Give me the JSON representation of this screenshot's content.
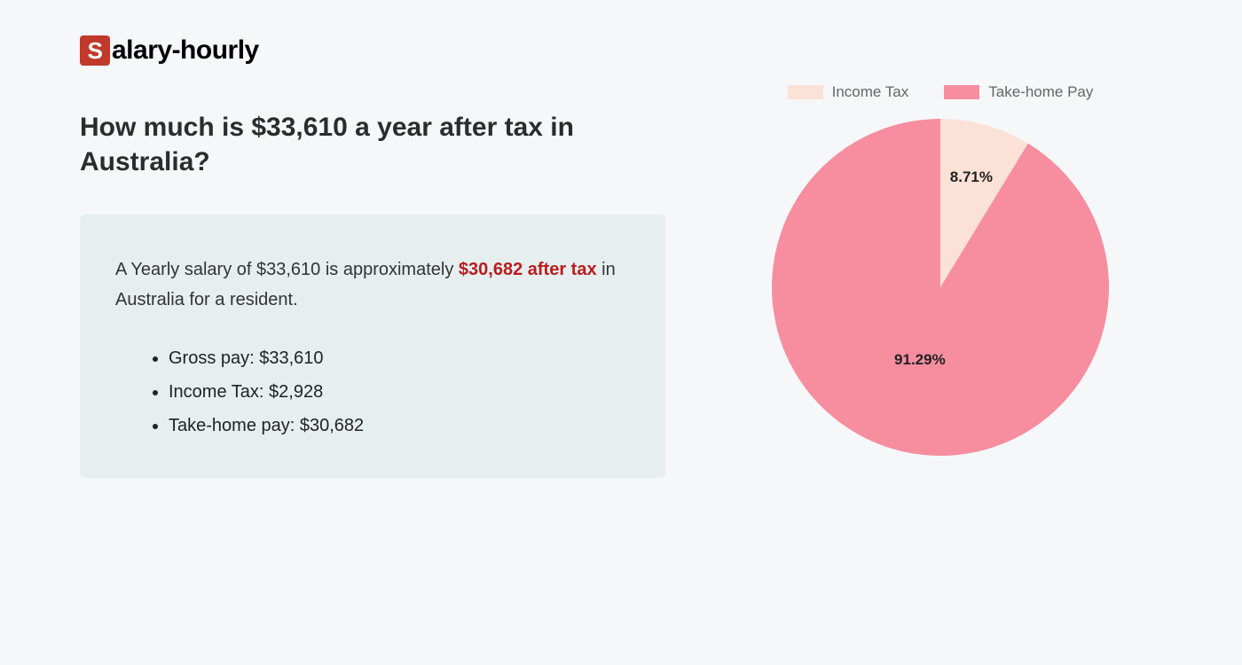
{
  "logo": {
    "s": "S",
    "rest": "alary-hourly"
  },
  "heading": "How much is $33,610 a year after tax in Australia?",
  "summary": {
    "text_before": "A Yearly salary of $33,610 is approximately ",
    "highlight": "$30,682 after tax",
    "text_after": " in Australia for a resident."
  },
  "bullets": [
    "Gross pay: $33,610",
    "Income Tax: $2,928",
    "Take-home pay: $30,682"
  ],
  "chart": {
    "type": "pie",
    "radius": 190,
    "background_color": "#f5f7f9",
    "slices": [
      {
        "label": "Income Tax",
        "value": 8.71,
        "color": "#fbe1d6",
        "display": "8.71%"
      },
      {
        "label": "Take-home Pay",
        "value": 91.29,
        "color": "#f68ea0",
        "display": "91.29%"
      }
    ],
    "legend_text_color": "#666666",
    "label_fontsize": 17,
    "label_fontweight": "700"
  }
}
